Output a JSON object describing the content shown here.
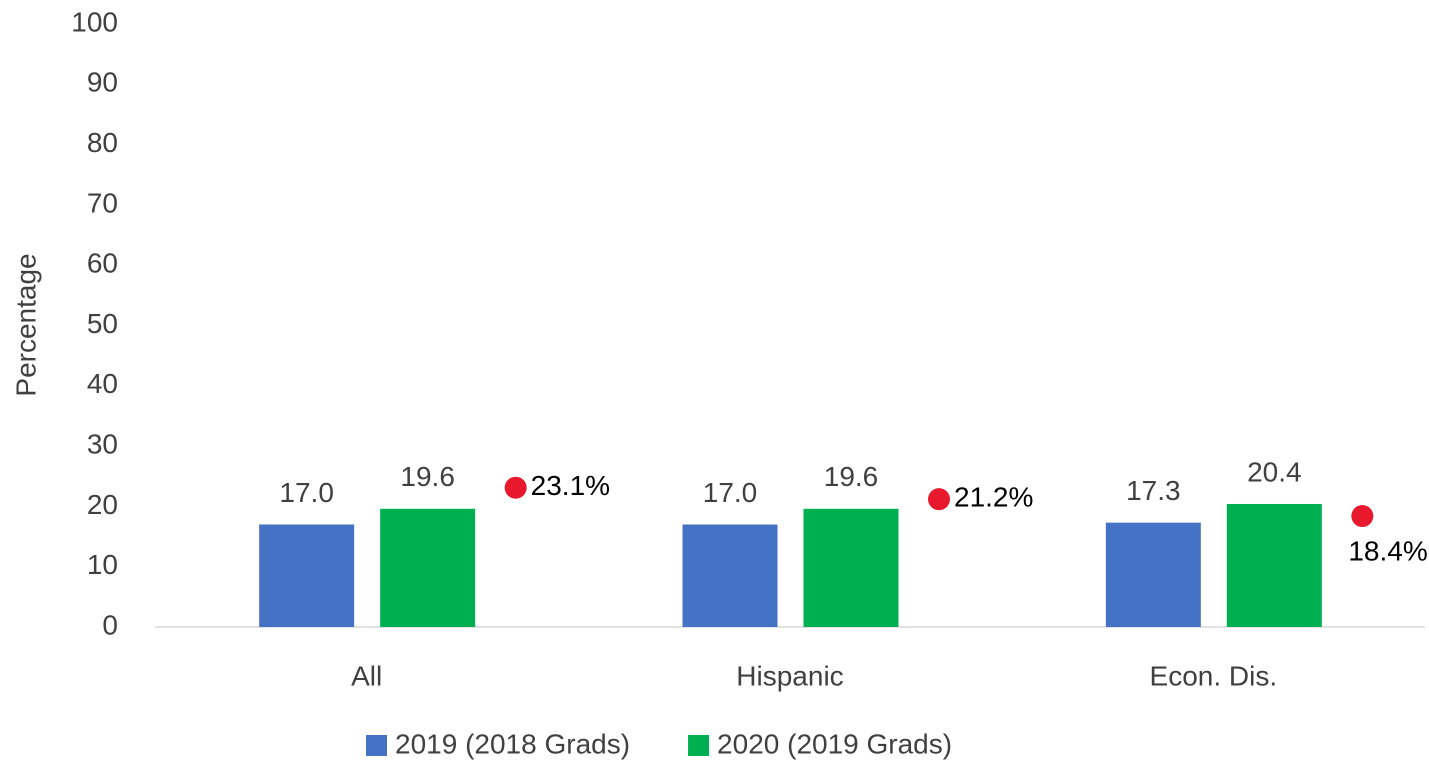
{
  "chart_data": {
    "type": "bar",
    "y_label": "Percentage",
    "categories": [
      "All",
      "Hispanic",
      "Econ. Dis."
    ],
    "series": [
      {
        "name": "2019 (2018 Grads)",
        "color": "#4472c4",
        "values": [
          17.0,
          17.0,
          17.3
        ],
        "value_labels": [
          "17.0",
          "17.0",
          "17.3"
        ]
      },
      {
        "name": "2020 (2019 Grads)",
        "color": "#00b050",
        "values": [
          19.6,
          19.6,
          20.4
        ],
        "value_labels": [
          "19.6",
          "19.6",
          "20.4"
        ]
      },
      {
        "type": "dot",
        "color": "#e8192c",
        "values": [
          23.1,
          21.2,
          18.4
        ],
        "value_labels": [
          "23.1%",
          "21.2%",
          "18.4%"
        ]
      }
    ],
    "ylim": [
      0,
      100
    ],
    "yticks": [
      0,
      10,
      20,
      30,
      40,
      50,
      60,
      70,
      80,
      90,
      100
    ],
    "grid": false
  }
}
